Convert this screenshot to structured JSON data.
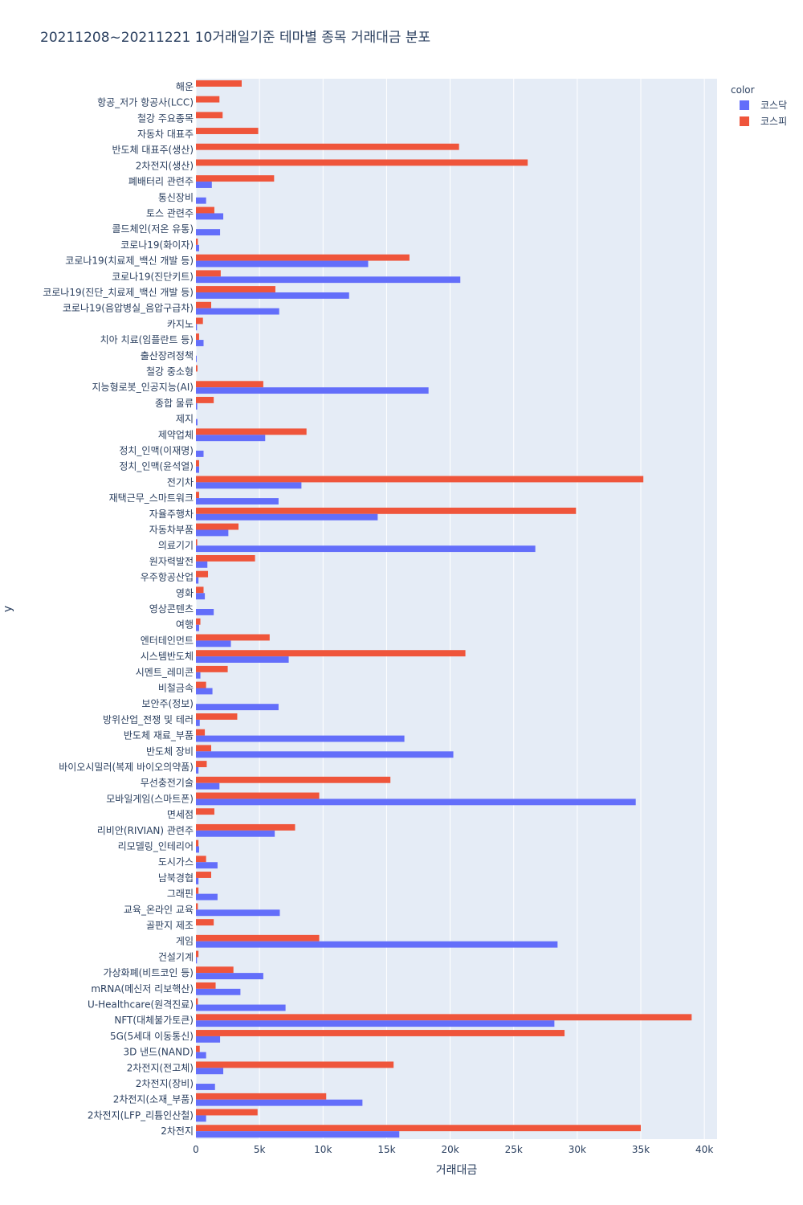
{
  "chart_data": {
    "type": "bar",
    "orientation": "horizontal",
    "barmode": "group",
    "title": "20211208~20211221 10거래일기준 테마별 종목 거래대금 분포",
    "xlabel": "거래대금",
    "ylabel": "y",
    "xlim": [
      0,
      41000
    ],
    "xticks": [
      0,
      5000,
      10000,
      15000,
      20000,
      25000,
      30000,
      35000,
      40000
    ],
    "xtick_labels": [
      "0",
      "5k",
      "10k",
      "15k",
      "20k",
      "25k",
      "30k",
      "35k",
      "40k"
    ],
    "legend_title": "color",
    "legend_position": "top-right",
    "grid": true,
    "colors": {
      "코스닥": "#636efa",
      "코스피": "#ef553b",
      "plot_bg": "#e5ecf6"
    },
    "categories": [
      "해운",
      "항공_저가 항공사(LCC)",
      "철강 주요종목",
      "자동차 대표주",
      "반도체 대표주(생산)",
      "2차전지(생산)",
      "폐배터리 관련주",
      "통신장비",
      "토스 관련주",
      "콜드체인(저온 유통)",
      "코로나19(화이자)",
      "코로나19(치료제_백신 개발 등)",
      "코로나19(진단키트)",
      "코로나19(진단_치료제_백신 개발 등)",
      "코로나19(음압병실_음압구급차)",
      "카지노",
      "치아 치료(임플란트 등)",
      "출산장려정책",
      "철강 중소형",
      "지능형로봇_인공지능(AI)",
      "종합 물류",
      "제지",
      "제약업체",
      "정치_인맥(이재명)",
      "정치_인맥(윤석열)",
      "전기차",
      "재택근무_스마트워크",
      "자율주행차",
      "자동차부품",
      "의료기기",
      "원자력발전",
      "우주항공산업",
      "영화",
      "영상콘텐츠",
      "여행",
      "엔터테인먼트",
      "시스템반도체",
      "시멘트_레미콘",
      "비철금속",
      "보안주(정보)",
      "방위산업_전쟁 및 테러",
      "반도체 재료_부품",
      "반도체 장비",
      "바이오시밀러(복제 바이오의약품)",
      "무선충전기술",
      "모바일게임(스마트폰)",
      "면세점",
      "리비안(RIVIAN) 관련주",
      "리모델링_인테리어",
      "도시가스",
      "남북경협",
      "그래핀",
      "교육_온라인 교육",
      "골판지 제조",
      "게임",
      "건설기계",
      "가상화폐(비트코인 등)",
      "mRNA(메신저 리보핵산)",
      "U-Healthcare(원격진료)",
      "NFT(대체불가토큰)",
      "5G(5세대 이동통신)",
      "3D 낸드(NAND)",
      "2차전지(전고체)",
      "2차전지(장비)",
      "2차전지(소재_부품)",
      "2차전지(LFP_리튬인산철)",
      "2차전지"
    ],
    "series": [
      {
        "name": "코스닥",
        "values": [
          0,
          0,
          0,
          0,
          0,
          0,
          1250,
          800,
          2150,
          1900,
          250,
          13550,
          20800,
          12050,
          6550,
          80,
          600,
          60,
          0,
          18300,
          100,
          120,
          5450,
          600,
          250,
          8300,
          6500,
          14300,
          2550,
          26700,
          900,
          200,
          700,
          1400,
          250,
          2750,
          7300,
          350,
          1300,
          6500,
          300,
          16400,
          20250,
          200,
          1850,
          34600,
          0,
          6200,
          250,
          1700,
          200,
          1700,
          6600,
          0,
          28450,
          80,
          5300,
          3500,
          7050,
          28200,
          1900,
          800,
          2150,
          1500,
          13100,
          800,
          16000
        ]
      },
      {
        "name": "코스피",
        "values": [
          3600,
          1850,
          2100,
          4900,
          20700,
          26100,
          6150,
          0,
          1450,
          0,
          150,
          16800,
          1950,
          6250,
          1200,
          550,
          250,
          0,
          120,
          5300,
          1400,
          0,
          8700,
          0,
          250,
          35200,
          250,
          29900,
          3350,
          100,
          4650,
          950,
          600,
          0,
          350,
          5800,
          21200,
          2500,
          800,
          0,
          3250,
          700,
          1200,
          850,
          15300,
          9700,
          1450,
          7800,
          200,
          800,
          1200,
          200,
          150,
          1400,
          9700,
          200,
          2950,
          1550,
          150,
          39000,
          29000,
          300,
          15550,
          0,
          10250,
          4850,
          35000
        ]
      }
    ]
  }
}
